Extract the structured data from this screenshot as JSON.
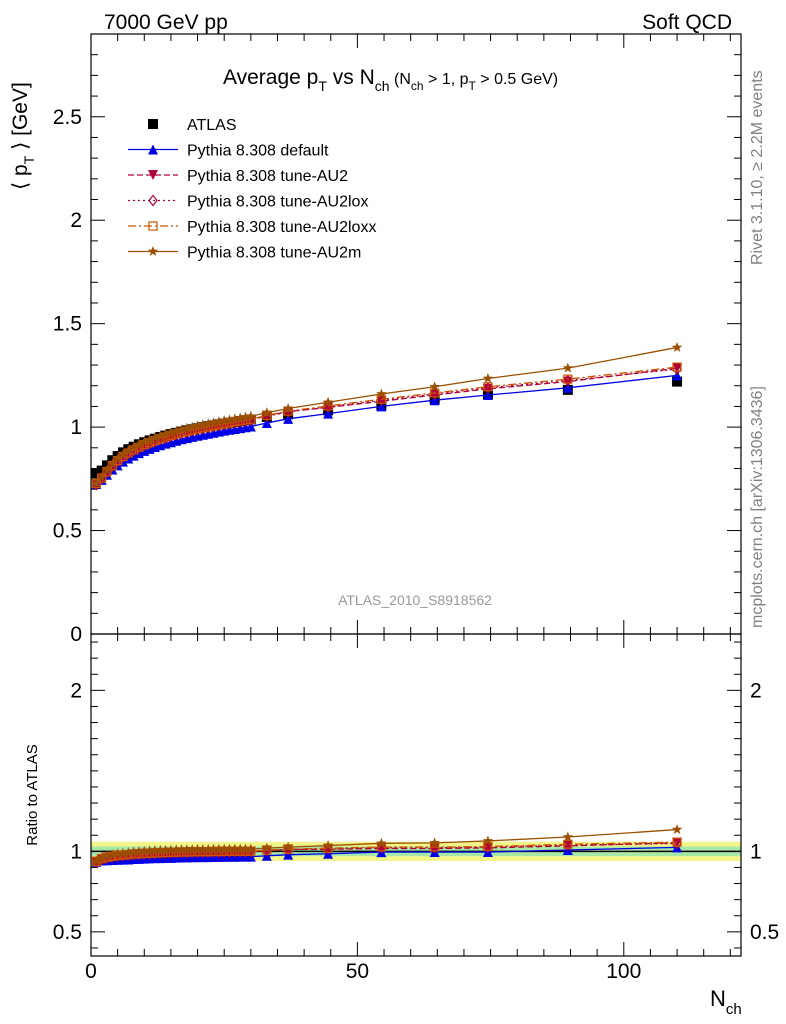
{
  "header": {
    "left": "7000 GeV pp",
    "right": "Soft QCD"
  },
  "side": {
    "rivet": "Rivet 3.1.10, ≥ 2.2M events",
    "mcplots": "mcplots.cern.ch [arXiv:1306.3436]"
  },
  "chart_data": {
    "type": "line",
    "title": "Average p_T vs N_ch (N_ch > 1, p_T > 0.5 GeV)",
    "watermark": "ATLAS_2010_S8918562",
    "xlabel": "N_ch",
    "ylabel": "⟨ p_T ⟩ [GeV]",
    "ratio_ylabel": "Ratio to ATLAS",
    "xlim": [
      0,
      122
    ],
    "ylim": [
      0,
      2.9
    ],
    "ratio_ylim": [
      0.35,
      2.35
    ],
    "x_ticks": [
      "0",
      "50",
      "100"
    ],
    "y_ticks": [
      "0.5",
      "1",
      "1.5",
      "2",
      "2.5"
    ],
    "ratio_y_ticks": [
      "0.5",
      "1",
      "2"
    ],
    "legend_position": "top-left",
    "x": [
      1,
      2,
      3,
      4,
      5,
      6,
      7,
      8,
      9,
      10,
      11,
      12,
      13,
      14,
      15,
      16,
      17,
      18,
      19,
      20,
      21,
      22,
      23,
      24,
      25,
      26,
      27,
      28,
      29,
      30,
      33,
      37,
      44.5,
      54.5,
      64.5,
      74.5,
      89.5,
      110
    ],
    "series": [
      {
        "name": "ATLAS",
        "color": "#000000",
        "marker": "square",
        "line": "none",
        "values": [
          0.775,
          0.79,
          0.815,
          0.84,
          0.86,
          0.878,
          0.893,
          0.905,
          0.917,
          0.927,
          0.936,
          0.944,
          0.952,
          0.959,
          0.966,
          0.972,
          0.978,
          0.984,
          0.989,
          0.994,
          0.999,
          1.004,
          1.008,
          1.013,
          1.017,
          1.021,
          1.025,
          1.029,
          1.033,
          1.037,
          1.049,
          1.062,
          1.081,
          1.105,
          1.135,
          1.16,
          1.18,
          1.22
        ]
      },
      {
        "name": "Pythia 8.308 default",
        "color": "#0000e6",
        "marker": "triangle-up",
        "line": "solid",
        "values": [
          0.725,
          0.745,
          0.77,
          0.795,
          0.815,
          0.833,
          0.848,
          0.862,
          0.874,
          0.885,
          0.895,
          0.904,
          0.912,
          0.92,
          0.927,
          0.934,
          0.941,
          0.947,
          0.953,
          0.958,
          0.963,
          0.968,
          0.973,
          0.978,
          0.983,
          0.987,
          0.991,
          0.995,
          0.999,
          1.003,
          1.02,
          1.04,
          1.065,
          1.1,
          1.13,
          1.155,
          1.19,
          1.25
        ]
      },
      {
        "name": "Pythia 8.308 tune-AU2",
        "color": "#b0003a",
        "marker": "triangle-down",
        "line": "dashed",
        "values": [
          0.725,
          0.752,
          0.783,
          0.812,
          0.836,
          0.856,
          0.873,
          0.888,
          0.901,
          0.913,
          0.923,
          0.933,
          0.942,
          0.95,
          0.958,
          0.965,
          0.972,
          0.978,
          0.984,
          0.99,
          0.995,
          1.0,
          1.005,
          1.01,
          1.015,
          1.019,
          1.024,
          1.028,
          1.032,
          1.036,
          1.055,
          1.075,
          1.095,
          1.125,
          1.155,
          1.185,
          1.22,
          1.285
        ]
      },
      {
        "name": "Pythia 8.308 tune-AU2lox",
        "color": "#b0003a",
        "marker": "diamond-open",
        "line": "dotted",
        "values": [
          0.723,
          0.75,
          0.781,
          0.81,
          0.834,
          0.854,
          0.871,
          0.886,
          0.899,
          0.911,
          0.921,
          0.931,
          0.94,
          0.948,
          0.956,
          0.963,
          0.97,
          0.976,
          0.982,
          0.988,
          0.993,
          0.998,
          1.003,
          1.008,
          1.013,
          1.017,
          1.022,
          1.026,
          1.03,
          1.034,
          1.053,
          1.073,
          1.098,
          1.13,
          1.16,
          1.19,
          1.225,
          1.28
        ]
      },
      {
        "name": "Pythia 8.308 tune-AU2loxx",
        "color": "#cc5500",
        "marker": "square-open",
        "line": "dashdot",
        "values": [
          0.727,
          0.754,
          0.785,
          0.814,
          0.838,
          0.858,
          0.875,
          0.89,
          0.903,
          0.915,
          0.925,
          0.935,
          0.944,
          0.952,
          0.96,
          0.967,
          0.974,
          0.98,
          0.986,
          0.992,
          0.997,
          1.002,
          1.007,
          1.012,
          1.017,
          1.021,
          1.026,
          1.03,
          1.034,
          1.038,
          1.057,
          1.077,
          1.102,
          1.135,
          1.165,
          1.195,
          1.232,
          1.29
        ]
      },
      {
        "name": "Pythia 8.308 tune-AU2m",
        "color": "#9a5000",
        "marker": "star",
        "line": "solid",
        "values": [
          0.728,
          0.758,
          0.792,
          0.822,
          0.847,
          0.868,
          0.886,
          0.902,
          0.916,
          0.928,
          0.939,
          0.949,
          0.958,
          0.966,
          0.974,
          0.981,
          0.988,
          0.994,
          1.0,
          1.006,
          1.011,
          1.016,
          1.021,
          1.026,
          1.031,
          1.035,
          1.04,
          1.044,
          1.048,
          1.052,
          1.07,
          1.09,
          1.12,
          1.16,
          1.195,
          1.235,
          1.285,
          1.385
        ]
      }
    ]
  }
}
